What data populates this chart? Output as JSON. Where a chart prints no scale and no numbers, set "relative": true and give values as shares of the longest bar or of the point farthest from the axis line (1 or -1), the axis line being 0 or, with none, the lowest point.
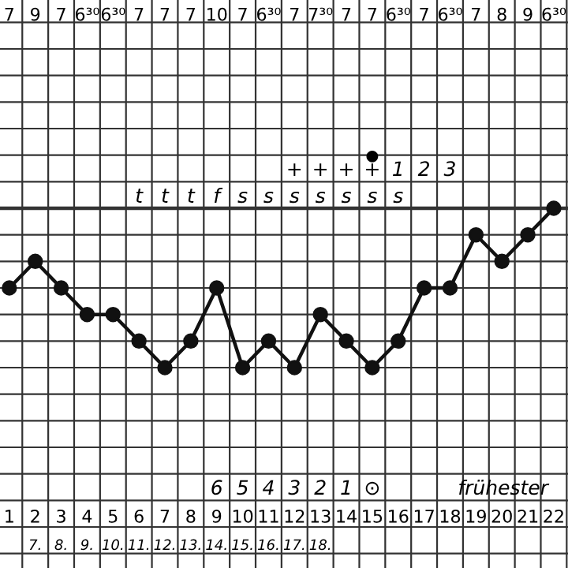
{
  "chart_data": {
    "type": "line",
    "relative": true,
    "grid": true,
    "marker": "circle",
    "line_style": "solid",
    "tick_labels": "x",
    "categories": [
      "1",
      "2",
      "3",
      "4",
      "5",
      "6",
      "7",
      "8",
      "9",
      "10",
      "11",
      "12",
      "13",
      "14",
      "15",
      "16",
      "17",
      "18",
      "19",
      "20",
      "21",
      "22"
    ],
    "series": [
      {
        "color": "#111111",
        "values": [
          0.5,
          0.667,
          0.5,
          0.333,
          0.333,
          0.167,
          0,
          0.167,
          0.5,
          0,
          0.167,
          0,
          0.333,
          0.167,
          0,
          0.167,
          0.5,
          0.5,
          0.833,
          0.667,
          0.833,
          1
        ]
      }
    ],
    "annotations": [
      "7 9 7 6³⁰ 6³⁰ 7 7 7 10 7 6³⁰ 7 7³⁰ 7 7 6³⁰ 7 6³⁰ 7 8 9 6³⁰",
      "+ + + + 1 2 3",
      "●",
      "t t t f s s s s s s s",
      "6 5 4 3 2 1 ⊙",
      "frühester",
      "7. 8. 9. 10. 11. 12. 13. 14. 15. 16. 17. 18."
    ]
  }
}
